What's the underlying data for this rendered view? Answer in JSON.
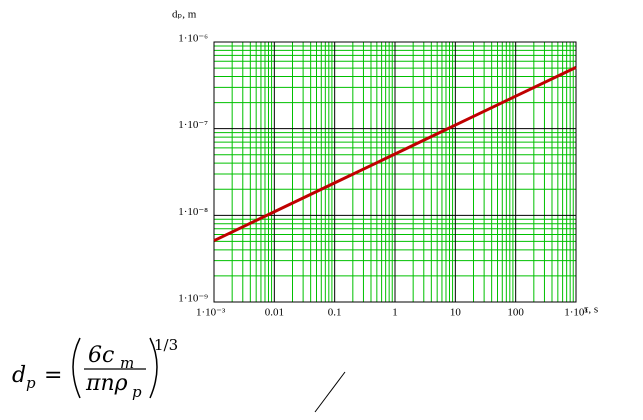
{
  "chart_data": {
    "type": "line",
    "xlabel": "τ, s",
    "ylabel": "dₚ, m",
    "x": [
      0.001,
      0.01,
      0.1,
      1,
      10,
      100,
      1000
    ],
    "series": [
      {
        "name": "dp",
        "color": "#c00000",
        "values": [
          5.1e-09,
          1.1e-08,
          2.37e-08,
          5.1e-08,
          1.1e-07,
          2.37e-07,
          5.1e-07
        ]
      }
    ],
    "xlim": [
      0.001,
      1000
    ],
    "ylim": [
      1e-09,
      1e-06
    ],
    "xticks": [
      {
        "value": 0.001,
        "label": "1·10⁻³"
      },
      0.01,
      0.1,
      1,
      10,
      100,
      {
        "value": 1000,
        "label": "1·10³"
      }
    ],
    "yticks": [
      {
        "value": 1e-09,
        "label": "1·10⁻⁹"
      },
      {
        "value": 1e-08,
        "label": "1·10⁻⁸"
      },
      {
        "value": 1e-07,
        "label": "1·10⁻⁷"
      },
      {
        "value": 1e-06,
        "label": "1·10⁻⁶"
      }
    ],
    "xscale": "log",
    "yscale": "log",
    "grid": true,
    "grid_color": "#00c000"
  },
  "formula": {
    "lhs": "d",
    "lhs_sub": "p",
    "equals": "=",
    "num": "6c",
    "num_sub": "m",
    "den": "πnρ",
    "den_sub": "p",
    "exponent": "1/3"
  }
}
